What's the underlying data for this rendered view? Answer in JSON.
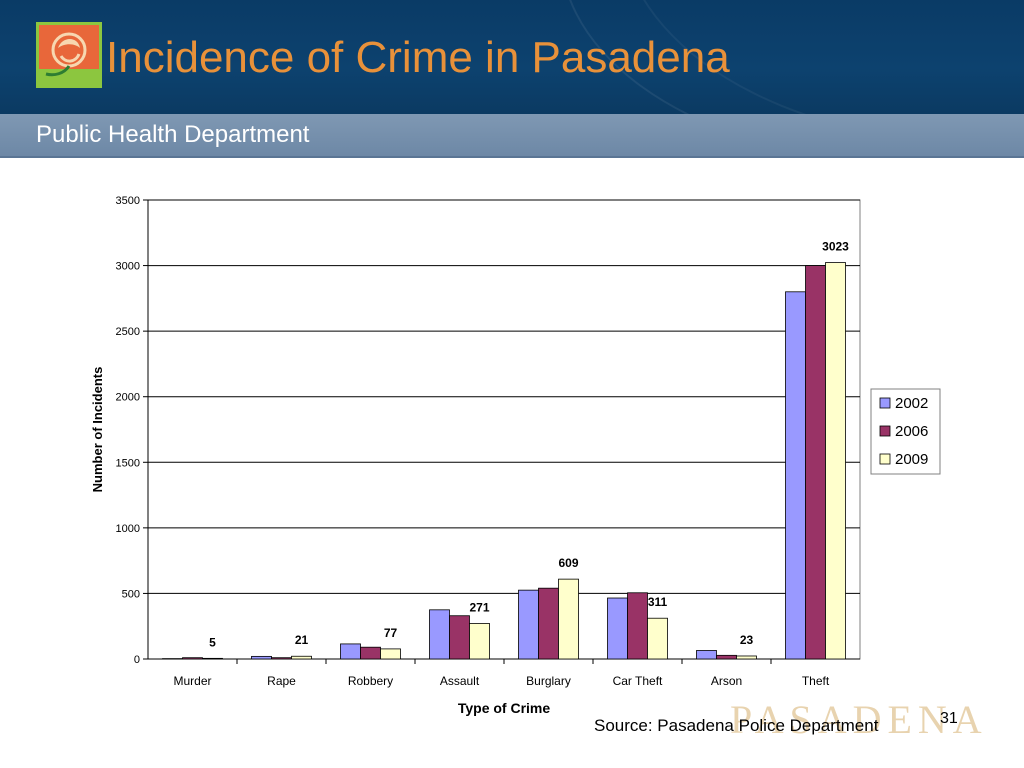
{
  "header": {
    "title": "Incidence of Crime in Pasadena",
    "subtitle": "Public Health Department"
  },
  "footer": {
    "source": "Source: Pasadena Police Department",
    "page_number": "31",
    "watermark": "PASADENA"
  },
  "colors": {
    "header_bg": "#0c406c",
    "title": "#e8913a",
    "series_2002": "#9999ff",
    "series_2006": "#993366",
    "series_2009": "#ffffcc"
  },
  "chart_data": {
    "type": "bar",
    "title": "",
    "xlabel": "Type of Crime",
    "ylabel": "Number of Incidents",
    "ylim": [
      0,
      3500
    ],
    "yticks": [
      0,
      500,
      1000,
      1500,
      2000,
      2500,
      3000,
      3500
    ],
    "categories": [
      "Murder",
      "Rape",
      "Robbery",
      "Assault",
      "Burglary",
      "Car Theft",
      "Arson",
      "Theft"
    ],
    "series": [
      {
        "name": "2002",
        "color": "#9999ff",
        "values": [
          3,
          20,
          115,
          375,
          525,
          465,
          65,
          2800
        ]
      },
      {
        "name": "2006",
        "color": "#993366",
        "values": [
          10,
          10,
          90,
          330,
          540,
          505,
          28,
          3000
        ]
      },
      {
        "name": "2009",
        "color": "#ffffcc",
        "values": [
          5,
          21,
          77,
          271,
          609,
          311,
          23,
          3023
        ]
      }
    ],
    "data_labels": [
      "5",
      "21",
      "77",
      "271",
      "609",
      "311",
      "23",
      "3023"
    ],
    "grid": true,
    "legend_position": "right"
  }
}
